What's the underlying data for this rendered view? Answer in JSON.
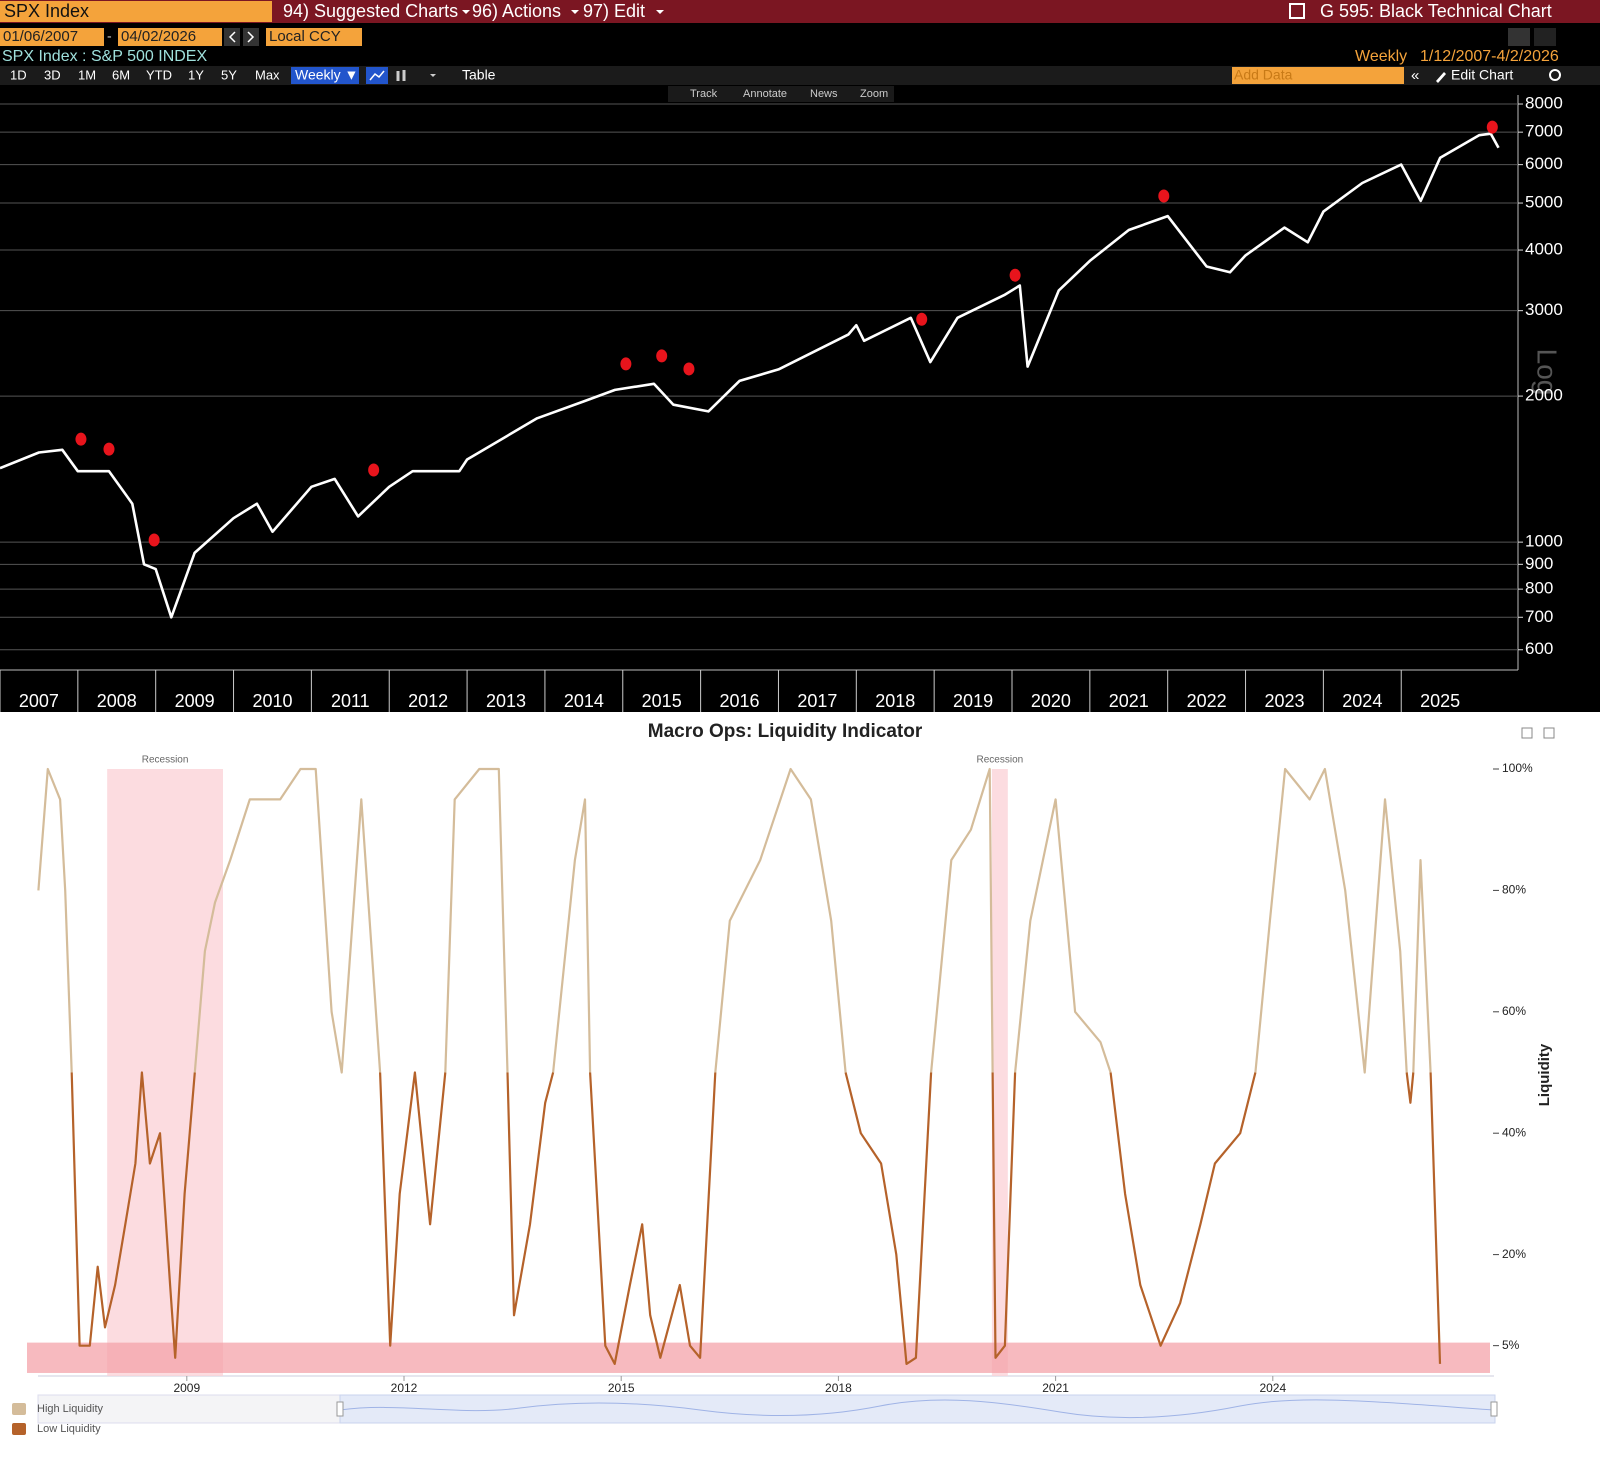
{
  "ui": {
    "ticker": "SPX Index",
    "menu": [
      "94) Suggested Charts",
      "96) Actions",
      "97) Edit"
    ],
    "screen_title": "G 595: Black Technical Chart",
    "start_date": "01/06/2007",
    "end_date": "04/02/2026",
    "currency": "Local CCY",
    "security": "SPX Index : S&P 500 INDEX",
    "frequency": "Weekly",
    "range": "1/12/2007-4/2/2026",
    "periods": [
      "1D",
      "3D",
      "1M",
      "6M",
      "YTD",
      "1Y",
      "5Y",
      "Max"
    ],
    "frequency_button": "Weekly ▼",
    "table_button": "Table",
    "add_data": "Add Data",
    "edit_chart": "Edit Chart",
    "tools": [
      "Track",
      "Annotate",
      "News",
      "Zoom"
    ],
    "log_label": "Log"
  },
  "chart_data": [
    {
      "type": "line",
      "color": "#ffffff",
      "log_scale": true,
      "grid": true,
      "x": [
        2007.0,
        2007.5,
        2007.8,
        2008.0,
        2008.4,
        2008.7,
        2008.85,
        2009.0,
        2009.2,
        2009.5,
        2010.0,
        2010.3,
        2010.5,
        2011.0,
        2011.3,
        2011.6,
        2012.0,
        2012.3,
        2012.9,
        2013.0,
        2013.9,
        2014.5,
        2014.9,
        2015.4,
        2015.65,
        2016.1,
        2016.5,
        2017.0,
        2017.9,
        2018.0,
        2018.1,
        2018.7,
        2018.95,
        2019.3,
        2019.9,
        2020.1,
        2020.2,
        2020.6,
        2021.0,
        2021.5,
        2022.0,
        2022.5,
        2022.8,
        2023.0,
        2023.5,
        2023.8,
        2024.0,
        2024.5,
        2025.0,
        2025.25,
        2025.5,
        2026.0,
        2026.15,
        2026.25
      ],
      "values": [
        1420,
        1530,
        1550,
        1400,
        1400,
        1200,
        900,
        880,
        700,
        950,
        1120,
        1200,
        1050,
        1300,
        1350,
        1130,
        1300,
        1400,
        1400,
        1480,
        1800,
        1950,
        2060,
        2120,
        1920,
        1860,
        2150,
        2270,
        2680,
        2800,
        2600,
        2900,
        2350,
        2900,
        3230,
        3380,
        2300,
        3300,
        3800,
        4400,
        4700,
        3700,
        3600,
        3900,
        4450,
        4150,
        4800,
        5500,
        6000,
        5050,
        6200,
        6900,
        6950,
        6500
      ],
      "markers": {
        "color": "#e8141c",
        "x": [
          2008.04,
          2008.4,
          2008.98,
          2011.8,
          2015.04,
          2015.5,
          2015.85,
          2018.84,
          2020.04,
          2021.95,
          2026.17
        ],
        "values": [
          1630,
          1555,
          1010,
          1408,
          2330,
          2420,
          2275,
          2880,
          3550,
          5170,
          7170
        ]
      },
      "xlim": [
        2007,
        2026.5
      ],
      "xticks": [
        2007,
        2008,
        2009,
        2010,
        2011,
        2012,
        2013,
        2014,
        2015,
        2016,
        2017,
        2018,
        2019,
        2020,
        2021,
        2022,
        2023,
        2024,
        2025
      ],
      "ylim": [
        545,
        8350
      ],
      "yticks": [
        600,
        700,
        800,
        900,
        1000,
        2000,
        3000,
        4000,
        5000,
        6000,
        7000,
        8000
      ]
    },
    {
      "type": "line",
      "title": "Macro Ops: Liquidity Indicator",
      "y_label": "Liquidity",
      "x": [
        2006.95,
        2007.08,
        2007.25,
        2007.32,
        2007.41,
        2007.52,
        2007.66,
        2007.77,
        2007.87,
        2008.01,
        2008.15,
        2008.29,
        2008.38,
        2008.49,
        2008.63,
        2008.77,
        2008.84,
        2008.97,
        2009.11,
        2009.25,
        2009.39,
        2009.6,
        2009.87,
        2010.29,
        2010.57,
        2010.78,
        2011.0,
        2011.14,
        2011.41,
        2011.67,
        2011.81,
        2011.94,
        2012.15,
        2012.36,
        2012.57,
        2012.7,
        2013.04,
        2013.31,
        2013.43,
        2013.52,
        2013.74,
        2013.95,
        2014.06,
        2014.36,
        2014.5,
        2014.57,
        2014.78,
        2014.91,
        2015.12,
        2015.29,
        2015.4,
        2015.54,
        2015.81,
        2015.95,
        2016.09,
        2016.3,
        2016.5,
        2016.92,
        2017.34,
        2017.62,
        2017.9,
        2018.1,
        2018.31,
        2018.59,
        2018.8,
        2018.94,
        2019.07,
        2019.28,
        2019.56,
        2019.83,
        2020.09,
        2020.13,
        2020.17,
        2020.3,
        2020.44,
        2020.65,
        2021.0,
        2021.27,
        2021.62,
        2021.76,
        2021.96,
        2022.17,
        2022.45,
        2022.72,
        2023.0,
        2023.2,
        2023.55,
        2023.76,
        2023.96,
        2024.17,
        2024.51,
        2024.72,
        2025.0,
        2025.27,
        2025.55,
        2025.76,
        2025.85,
        2025.9,
        2025.94,
        2026.04,
        2026.18,
        2026.31
      ],
      "series": [
        {
          "name": "High Liquidity",
          "color": "#d4bc9a",
          "values": [
            80,
            100,
            95,
            80,
            50,
            null,
            null,
            null,
            null,
            null,
            null,
            null,
            50,
            null,
            null,
            null,
            null,
            null,
            50,
            70,
            78,
            85,
            95,
            95,
            100,
            100,
            60,
            50,
            95,
            50,
            null,
            null,
            50,
            null,
            50,
            95,
            100,
            100,
            50,
            null,
            null,
            null,
            50,
            85,
            95,
            50,
            null,
            null,
            null,
            null,
            null,
            null,
            null,
            null,
            null,
            50,
            75,
            85,
            100,
            95,
            75,
            50,
            null,
            null,
            null,
            null,
            null,
            50,
            85,
            90,
            100,
            50,
            null,
            null,
            50,
            75,
            95,
            60,
            55,
            50,
            null,
            null,
            null,
            null,
            null,
            null,
            null,
            50,
            75,
            100,
            95,
            100,
            80,
            50,
            95,
            70,
            50,
            null,
            50,
            85,
            50,
            null
          ]
        },
        {
          "name": "Low Liquidity",
          "color": "#b5622a",
          "values": [
            null,
            null,
            null,
            null,
            50,
            5,
            5,
            18,
            8,
            15,
            25,
            35,
            50,
            35,
            40,
            15,
            3,
            30,
            50,
            null,
            null,
            null,
            null,
            null,
            null,
            null,
            null,
            50,
            null,
            50,
            5,
            30,
            50,
            25,
            50,
            null,
            null,
            null,
            50,
            10,
            25,
            45,
            50,
            null,
            null,
            50,
            5,
            2,
            15,
            25,
            10,
            3,
            15,
            5,
            3,
            50,
            null,
            null,
            null,
            null,
            null,
            50,
            40,
            35,
            20,
            2,
            3,
            50,
            null,
            null,
            null,
            50,
            3,
            5,
            50,
            null,
            null,
            null,
            null,
            50,
            30,
            15,
            5,
            12,
            25,
            35,
            40,
            50,
            null,
            null,
            null,
            null,
            null,
            50,
            null,
            null,
            50,
            45,
            50,
            null,
            50,
            2
          ]
        }
      ],
      "recessions": [
        {
          "label": "Recession",
          "start": 2007.9,
          "end": 2009.5
        },
        {
          "label": "Recession",
          "start": 2020.12,
          "end": 2020.34
        }
      ],
      "recession_color": "#fbd3d8",
      "zone": [
        0.5,
        5.5
      ],
      "zone_color": "#f4a3aa",
      "xlim": [
        2007,
        2027
      ],
      "xticks": [
        2009,
        2012,
        2015,
        2018,
        2021,
        2024
      ],
      "ylim": [
        0,
        100
      ],
      "yticks": [
        {
          "value": 5,
          "label": "5%"
        },
        {
          "value": 20,
          "label": "20%"
        },
        {
          "value": 40,
          "label": "40%"
        },
        {
          "value": 60,
          "label": "60%"
        },
        {
          "value": 80,
          "label": "80%"
        },
        {
          "value": 100,
          "label": "100%"
        }
      ]
    }
  ]
}
